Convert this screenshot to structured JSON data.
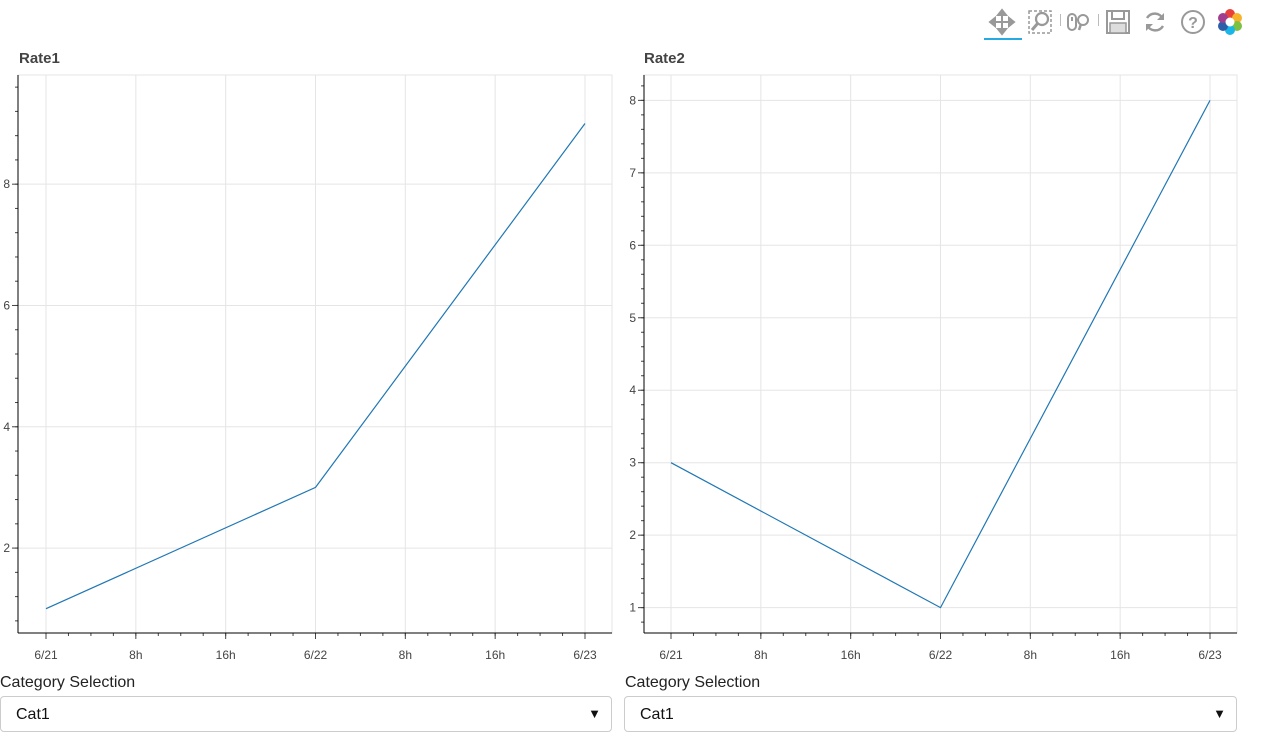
{
  "toolbar": {
    "tools": [
      "pan-icon",
      "box-zoom-icon",
      "wheel-zoom-icon",
      "save-icon",
      "reset-icon",
      "help-icon",
      "bokeh-logo-icon"
    ],
    "active_tool": "pan-icon",
    "accent_color": "#26aae1"
  },
  "chart_data": [
    {
      "type": "line",
      "title": "Rate1",
      "x": [
        "2018-06-21 00:00",
        "2018-06-22 00:00",
        "2018-06-23 00:00"
      ],
      "series": [
        {
          "values": [
            1,
            3,
            9
          ],
          "color": "#1f77b4"
        }
      ],
      "xticks": [
        "6/21",
        "8h",
        "16h",
        "6/22",
        "8h",
        "16h",
        "6/23"
      ],
      "yticks": [
        "2",
        "4",
        "6",
        "8"
      ],
      "ylim": [
        0.6,
        9.8
      ],
      "grid": true
    },
    {
      "type": "line",
      "title": "Rate2",
      "x": [
        "2018-06-21 00:00",
        "2018-06-22 00:00",
        "2018-06-23 00:00"
      ],
      "series": [
        {
          "values": [
            3,
            1,
            8
          ],
          "color": "#1f77b4"
        }
      ],
      "xticks": [
        "6/21",
        "8h",
        "16h",
        "6/22",
        "8h",
        "16h",
        "6/23"
      ],
      "yticks": [
        "1",
        "2",
        "3",
        "4",
        "5",
        "6",
        "7",
        "8"
      ],
      "ylim": [
        0.65,
        8.35
      ],
      "grid": true
    }
  ],
  "selects": [
    {
      "label": "Category Selection",
      "value": "Cat1",
      "arrow": "▼"
    },
    {
      "label": "Category Selection",
      "value": "Cat1",
      "arrow": "▼"
    }
  ]
}
